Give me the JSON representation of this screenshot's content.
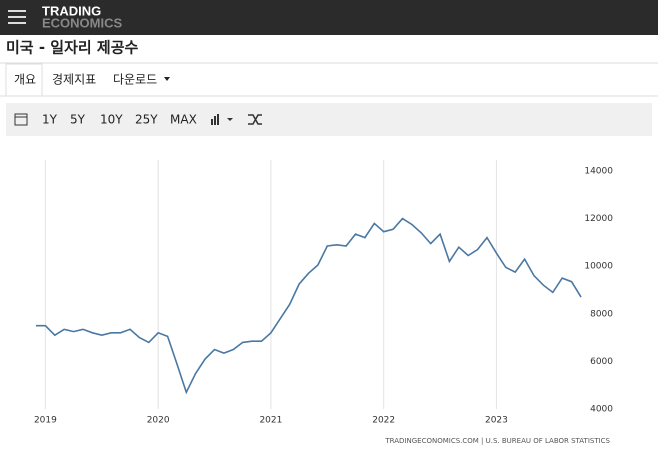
{
  "header": {
    "logo": [
      "TRADING",
      "ECONOMICS"
    ],
    "title": "미국 - 일자리 제공수"
  },
  "tabs": [
    "개요",
    "경제지표",
    "다운로드"
  ],
  "toolbar": [
    "1Y",
    "5Y",
    "10Y",
    "25Y",
    "MAX"
  ],
  "chart_data": {
    "type": "line",
    "color": "#4a78a3",
    "grid": true,
    "categories": [
      null,
      "2019",
      null,
      null,
      null,
      null,
      null,
      null,
      null,
      null,
      null,
      null,
      null,
      "2020",
      null,
      null,
      null,
      null,
      null,
      null,
      null,
      null,
      null,
      null,
      null,
      "2021",
      null,
      null,
      null,
      null,
      null,
      null,
      null,
      null,
      null,
      null,
      null,
      "2022",
      null,
      null,
      null,
      null,
      null,
      null,
      null,
      null,
      null,
      null,
      null,
      "2023",
      null,
      null,
      null,
      null,
      null,
      null,
      null,
      null,
      null
    ],
    "values": [
      7500,
      7500,
      7100,
      7350,
      7250,
      7350,
      7200,
      7100,
      7200,
      7200,
      7350,
      7000,
      6800,
      7200,
      7050,
      5900,
      4700,
      5500,
      6100,
      6500,
      6350,
      6500,
      6800,
      6850,
      6850,
      7200,
      7800,
      8400,
      9250,
      9700,
      10050,
      10850,
      10900,
      10850,
      11350,
      11200,
      11800,
      11450,
      11550,
      12000,
      11750,
      11400,
      10950,
      11350,
      10200,
      10800,
      10450,
      10700,
      11200,
      10550,
      9950,
      9750,
      10300,
      9600,
      9200,
      8900,
      9500,
      9350,
      8700
    ],
    "ylim": [
      4000,
      14000
    ],
    "yticks": [
      4000,
      6000,
      8000,
      10000,
      12000,
      14000
    ],
    "source": "TRADINGECONOMICS.COM  |  U.S. BUREAU OF LABOR STATISTICS"
  }
}
